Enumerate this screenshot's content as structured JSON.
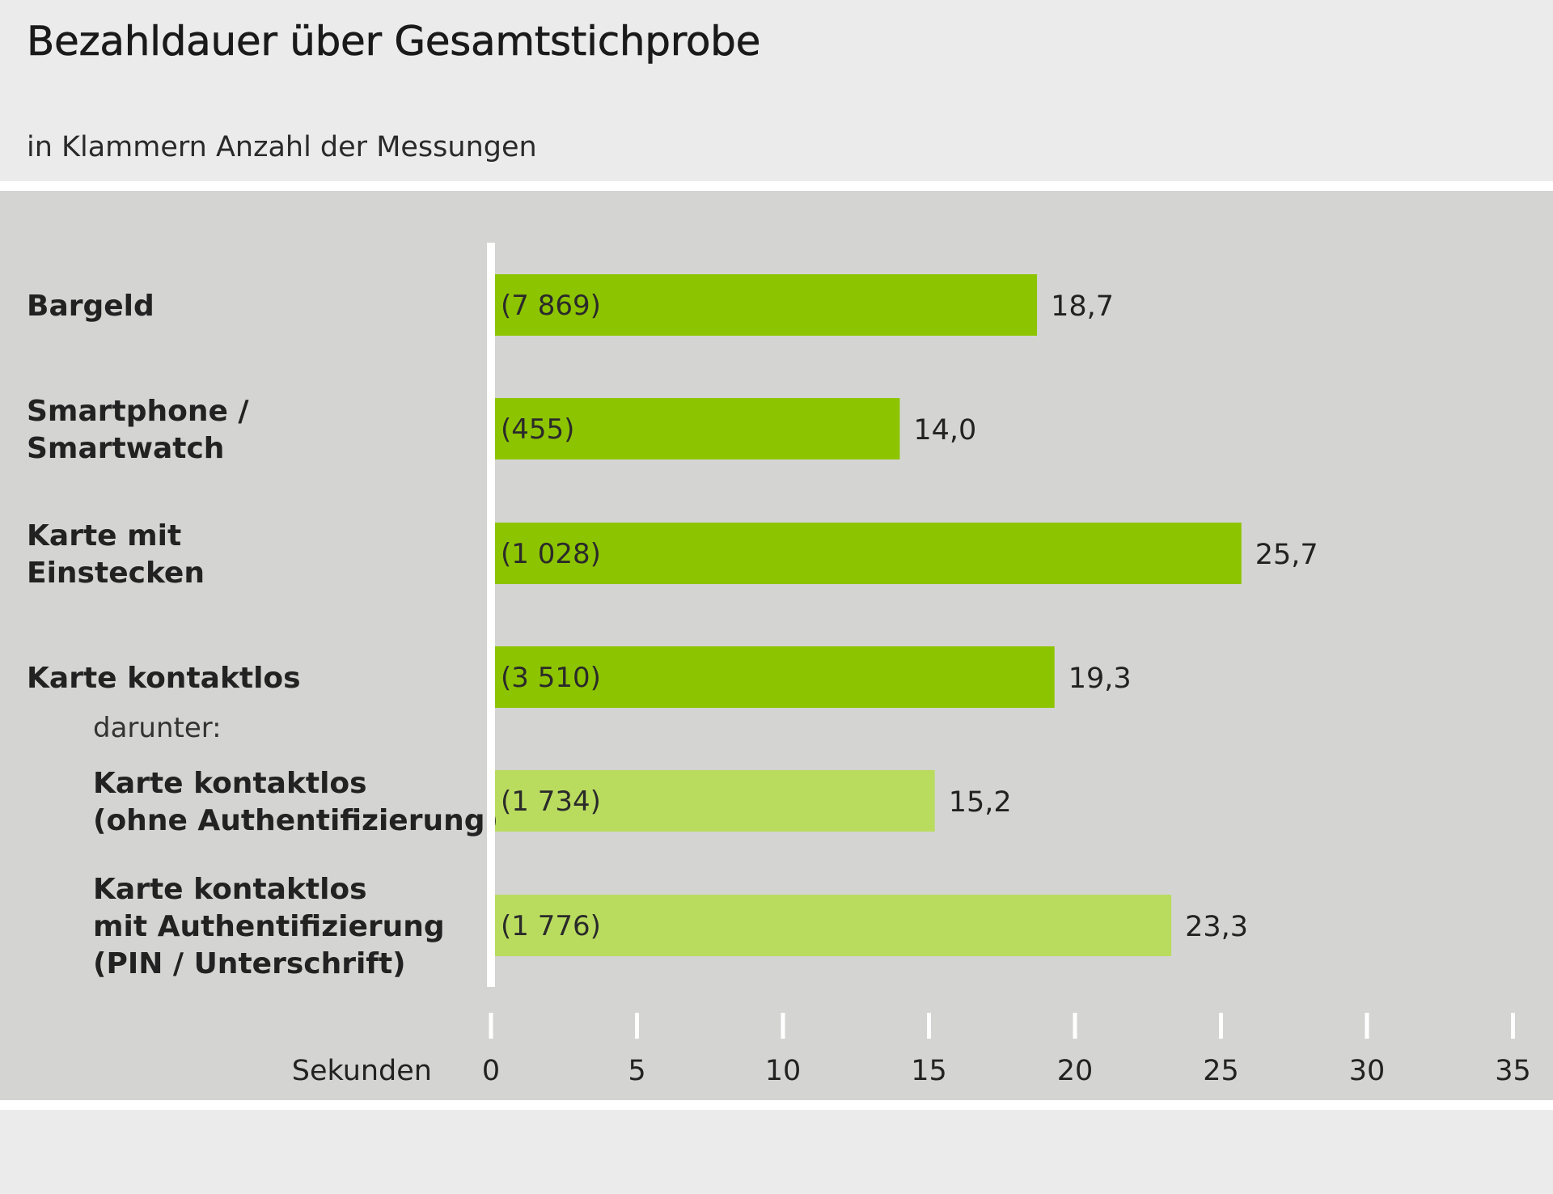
{
  "chart_data": {
    "type": "bar",
    "orientation": "horizontal",
    "title": "Bezahldauer über Gesamtstichprobe",
    "subtitle": "in Klammern Anzahl der Messungen",
    "xlabel": "Sekunden",
    "ylabel": "",
    "xlim": [
      0,
      35
    ],
    "ticks": [
      "0",
      "5",
      "10",
      "15",
      "20",
      "25",
      "30",
      "35"
    ],
    "tick_values": [
      0,
      5,
      10,
      15,
      20,
      25,
      30,
      35
    ],
    "grid": false,
    "colors": {
      "main": "#8dc400",
      "sub": "#b9dc5f",
      "plot_background": "#d4d4d3",
      "axis": "#ffffff"
    },
    "categories": [
      {
        "lines": [
          "Bargeld"
        ],
        "n": "(7 869)",
        "value": 18.7,
        "value_label": "18,7",
        "level": "main"
      },
      {
        "lines": [
          "Smartphone /",
          "Smartwatch"
        ],
        "n": "(455)",
        "value": 14.0,
        "value_label": "14,0",
        "level": "main"
      },
      {
        "lines": [
          "Karte mit",
          "Einstecken"
        ],
        "n": "(1 028)",
        "value": 25.7,
        "value_label": "25,7",
        "level": "main"
      },
      {
        "lines": [
          "Karte kontaktlos"
        ],
        "n": "(3 510)",
        "value": 19.3,
        "value_label": "19,3",
        "level": "main",
        "note": "darunter:"
      },
      {
        "lines": [
          "Karte kontaktlos",
          "(ohne Authentifizierung)"
        ],
        "n": "(1 734)",
        "value": 15.2,
        "value_label": "15,2",
        "level": "sub"
      },
      {
        "lines": [
          "Karte kontaktlos",
          "mit Authentifizierung",
          "(PIN / Unterschrift)"
        ],
        "n": "(1 776)",
        "value": 23.3,
        "value_label": "23,3",
        "level": "sub"
      }
    ]
  }
}
